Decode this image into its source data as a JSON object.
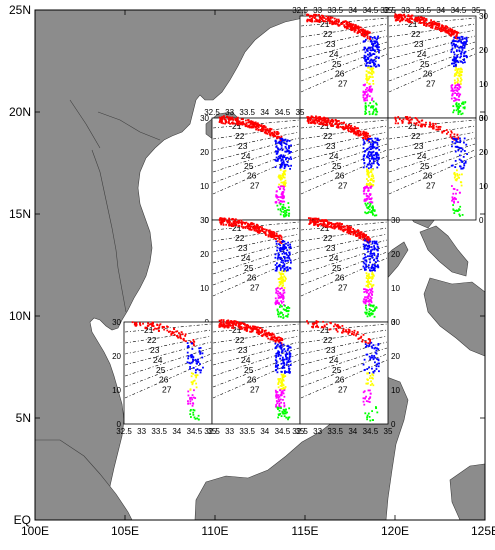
{
  "chart_data": {
    "type": "scatter",
    "title": "",
    "map": {
      "x_ticks": [
        "100E",
        "105E",
        "110E",
        "115E",
        "120E",
        "125E"
      ],
      "y_ticks": [
        "EQ",
        "5N",
        "10N",
        "15N",
        "20N",
        "25N"
      ],
      "xlim": [
        100,
        125
      ],
      "ylim": [
        0,
        25
      ],
      "land_color": "#8c8c8c",
      "sea_color": "#ffffff"
    },
    "inset_axes": {
      "x_tick_labels": [
        "32.5",
        "33",
        "33.5",
        "34",
        "34.5",
        "35"
      ],
      "x_range": [
        32.5,
        35
      ],
      "y_tick_labels": [
        "0",
        "10",
        "20",
        "30"
      ],
      "y_range": [
        0,
        30
      ],
      "isopycnals": [
        "21",
        "22",
        "23",
        "24",
        "25",
        "26",
        "27"
      ]
    },
    "layer_colors": {
      "surface": "#ff0000",
      "subsurface": "#0000ff",
      "intermediate": "#ffff00",
      "deep_intermediate": "#ff00ff",
      "deep": "#00ff00"
    },
    "panels": [
      {
        "id": "r1c1",
        "top_labels": true,
        "right_labels": false,
        "left_labels": false,
        "bottom_labels": false
      },
      {
        "id": "r1c2",
        "top_labels": true,
        "right_labels": true,
        "left_labels": false,
        "bottom_labels": false
      },
      {
        "id": "r2c0",
        "top_labels": true,
        "right_labels": false,
        "left_labels": true,
        "bottom_labels": false
      },
      {
        "id": "r2c1",
        "top_labels": false,
        "right_labels": false,
        "left_labels": false,
        "bottom_labels": false
      },
      {
        "id": "r2c2",
        "top_labels": false,
        "right_labels": true,
        "left_labels": false,
        "bottom_labels": false,
        "sparse": true
      },
      {
        "id": "r3c0",
        "top_labels": false,
        "right_labels": false,
        "left_labels": true,
        "bottom_labels": false
      },
      {
        "id": "r3c1",
        "top_labels": false,
        "right_labels": true,
        "left_labels": false,
        "bottom_labels": false
      },
      {
        "id": "r4c-1",
        "top_labels": false,
        "right_labels": false,
        "left_labels": true,
        "bottom_labels": true,
        "sparse": true
      },
      {
        "id": "r4c0",
        "top_labels": false,
        "right_labels": false,
        "left_labels": false,
        "bottom_labels": true
      },
      {
        "id": "r4c1",
        "top_labels": false,
        "right_labels": true,
        "left_labels": false,
        "bottom_labels": true,
        "sparse": true
      }
    ]
  }
}
